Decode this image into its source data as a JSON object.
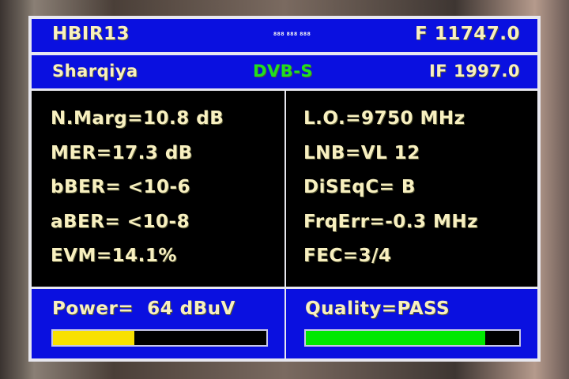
{
  "header": {
    "satellite": "HBIR13",
    "indicator": "888 888 888",
    "frequency": "F 11747.0"
  },
  "subheader": {
    "channel": "Sharqiya",
    "standard": "DVB-S",
    "if_freq": "IF 1997.0",
    "standard_color": "#20e020"
  },
  "left": [
    "N.Marg=10.8 dB",
    "MER=17.3 dB",
    "bBER= <10-6",
    "aBER= <10-8",
    "EVM=14.1%"
  ],
  "right": [
    "L.O.=9750 MHz",
    "LNB=VL 12",
    "DiSEqC= B",
    "FrqErr=-0.3 MHz",
    "FEC=3/4"
  ],
  "power": {
    "label": "Power=  64 dBuV",
    "level_percent": 38,
    "color": "#f8e000"
  },
  "quality": {
    "label": "Quality=PASS",
    "level_percent": 84,
    "color": "#00e800"
  }
}
